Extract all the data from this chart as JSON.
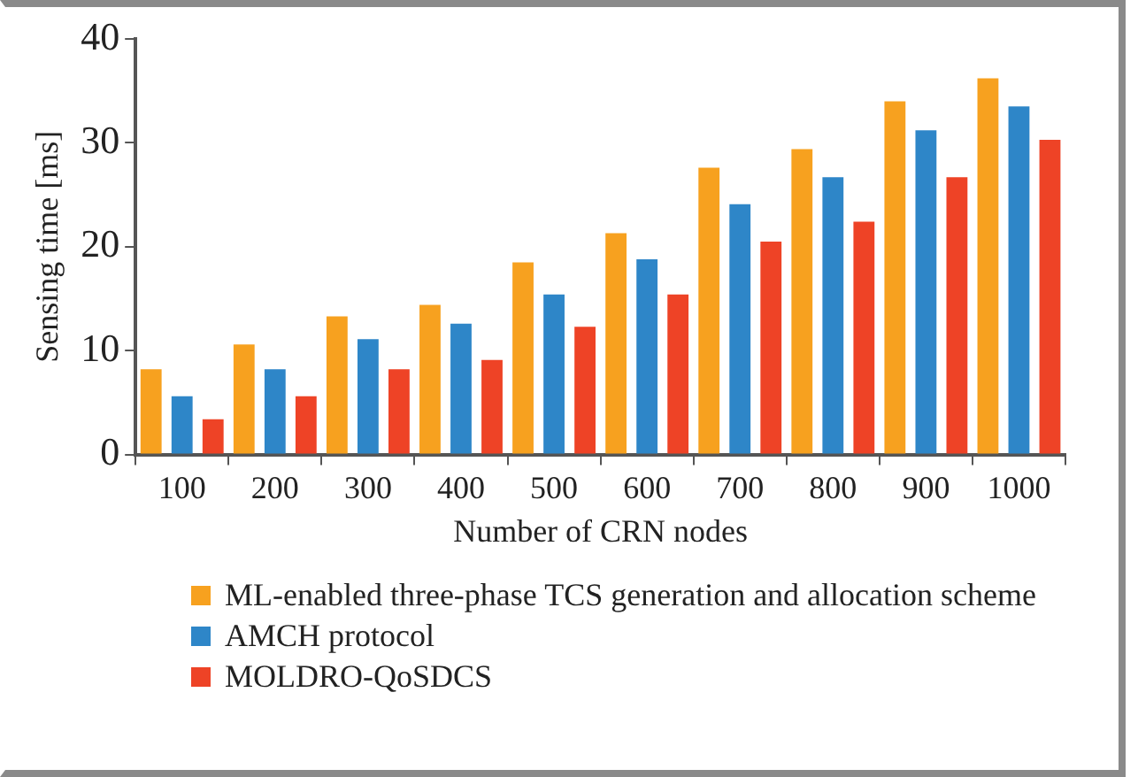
{
  "chart_data": {
    "type": "bar",
    "xlabel": "Number of CRN nodes",
    "ylabel": "Sensing time [ms]",
    "categories": [
      "100",
      "200",
      "300",
      "400",
      "500",
      "600",
      "700",
      "800",
      "900",
      "1000"
    ],
    "series": [
      {
        "name": "ML-enabled three-phase TCS generation and allocation scheme",
        "color": "#f7a11f",
        "values": [
          8.2,
          10.6,
          13.3,
          14.4,
          18.5,
          21.3,
          27.6,
          29.4,
          34.0,
          36.2
        ]
      },
      {
        "name": "AMCH protocol",
        "color": "#2e86c8",
        "values": [
          5.6,
          8.2,
          11.1,
          12.6,
          15.4,
          18.8,
          24.1,
          26.7,
          31.2,
          33.5
        ]
      },
      {
        "name": "MOLDRO-QoSDCS",
        "color": "#ee4326",
        "values": [
          3.4,
          5.6,
          8.2,
          9.1,
          12.3,
          15.4,
          20.5,
          22.4,
          26.7,
          30.3
        ]
      }
    ],
    "ylim": [
      0,
      40
    ],
    "yticks": [
      0,
      10,
      20,
      30,
      40
    ],
    "grid": false,
    "legend": "bottom"
  }
}
